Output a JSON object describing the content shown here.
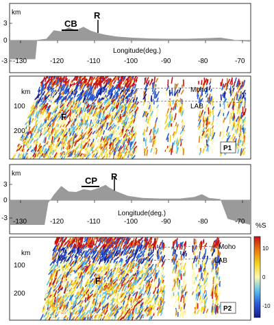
{
  "topography": [
    {
      "id": "P1",
      "km_label": "km",
      "y_ticks": [
        "3",
        "0",
        "-3"
      ],
      "x_ticks": [
        "-130",
        "-120",
        "-110",
        "-100",
        "-90",
        "-80",
        "-70"
      ],
      "x_values": [
        -130,
        -120,
        -110,
        -100,
        -90,
        -80,
        -70
      ],
      "xlabel": "Longitude(deg.)",
      "labels": [
        "CB",
        "R"
      ],
      "label_lons": [
        -117,
        -109
      ],
      "profile": [
        [
          -134,
          -3.3
        ],
        [
          -126,
          -3.3
        ],
        [
          -125.5,
          0.1
        ],
        [
          -123,
          0.3
        ],
        [
          -121,
          1.8
        ],
        [
          -119,
          1.6
        ],
        [
          -117,
          2.3
        ],
        [
          -115,
          1.8
        ],
        [
          -113,
          2.4
        ],
        [
          -111,
          1.7
        ],
        [
          -109,
          1.3
        ],
        [
          -107,
          1.0
        ],
        [
          -104,
          0.7
        ],
        [
          -100,
          0.5
        ],
        [
          -95,
          0.35
        ],
        [
          -90,
          0.3
        ],
        [
          -85,
          0.3
        ],
        [
          -80,
          0.4
        ],
        [
          -76,
          0.5
        ],
        [
          -73,
          0.2
        ],
        [
          -71,
          -0.1
        ],
        [
          -66,
          -0.2
        ]
      ]
    },
    {
      "id": "P2",
      "km_label": "km",
      "y_ticks": [
        "3",
        "0",
        "-3"
      ],
      "x_ticks": [
        "-130",
        "-120",
        "-110",
        "-100",
        "-90",
        "-80",
        "-70"
      ],
      "x_values": [
        -130,
        -120,
        -110,
        -100,
        -90,
        -80,
        -70
      ],
      "xlabel": "Longitude(deg.)",
      "labels": [
        "CP",
        "R"
      ],
      "label_lons": [
        -112,
        -106
      ],
      "profile": [
        [
          -134,
          -4.5
        ],
        [
          -123.5,
          -4.5
        ],
        [
          -122.5,
          -0.5
        ],
        [
          -121,
          1.0
        ],
        [
          -119,
          2.6
        ],
        [
          -117,
          1.6
        ],
        [
          -115,
          1.5
        ],
        [
          -113,
          2.0
        ],
        [
          -111,
          1.8
        ],
        [
          -109,
          2.2
        ],
        [
          -107,
          2.8
        ],
        [
          -106,
          2.3
        ],
        [
          -104,
          1.6
        ],
        [
          -101,
          0.8
        ],
        [
          -97,
          0.4
        ],
        [
          -92,
          0.3
        ],
        [
          -87,
          0.3
        ],
        [
          -83,
          0.6
        ],
        [
          -81,
          1.1
        ],
        [
          -79,
          0.4
        ],
        [
          -76,
          0.2
        ],
        [
          -74,
          -3.4
        ],
        [
          -66,
          -4.5
        ]
      ]
    }
  ],
  "sections": [
    {
      "id": "P1",
      "tag": "P1",
      "F": "F",
      "moho": "Moho",
      "lab": "LAB",
      "km_label": "km",
      "depth_ticks": [
        "100",
        "200"
      ]
    },
    {
      "id": "P2",
      "tag": "P2",
      "F": "F",
      "moho": "Moho",
      "lab": "LAB",
      "km_label": "km",
      "depth_ticks": [
        "100",
        "200"
      ]
    }
  ],
  "colorbar": {
    "title": "%S",
    "ticks": [
      "10",
      "0",
      "-10"
    ],
    "tick_values": [
      10,
      0,
      -10
    ],
    "range": [
      -14,
      14
    ],
    "colors": [
      "#1a1a8c",
      "#2a5bd7",
      "#5bc0eb",
      "#fff7b0",
      "#f2d21a",
      "#e87a12",
      "#c81414"
    ]
  }
}
